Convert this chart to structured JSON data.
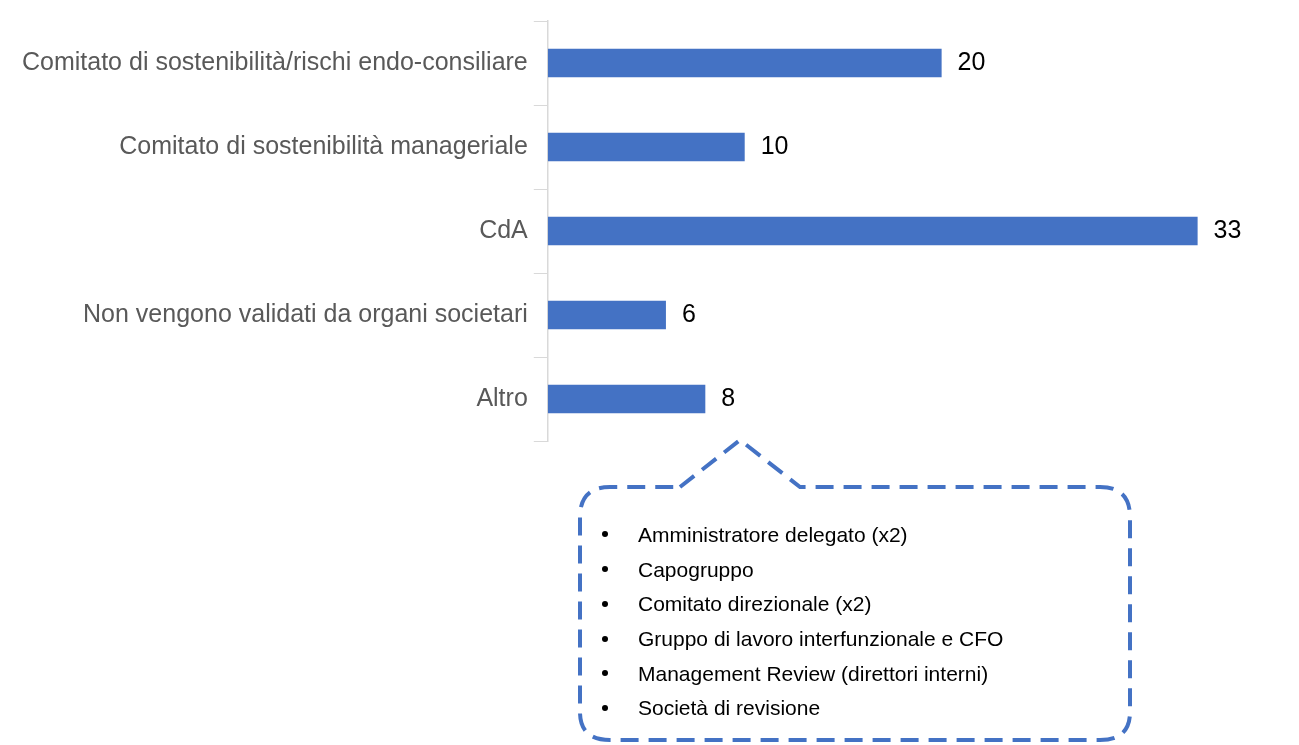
{
  "chart_data": {
    "type": "bar",
    "orientation": "horizontal",
    "categories": [
      "Comitato di sostenibilità/rischi endo-consiliare",
      "Comitato di sostenibilità manageriale",
      "CdA",
      "Non vengono validati da organi societari",
      "Altro"
    ],
    "values": [
      20,
      10,
      33,
      6,
      8
    ],
    "color": "#4472c4",
    "data_labels": true,
    "annotations": [
      "Amministratore delegato (x2)",
      "Capogruppo",
      "Comitato direzionale (x2)",
      "Gruppo di lavoro interfunzionale e CFO",
      "Management Review (direttori interni)",
      "Società di revisione"
    ]
  }
}
